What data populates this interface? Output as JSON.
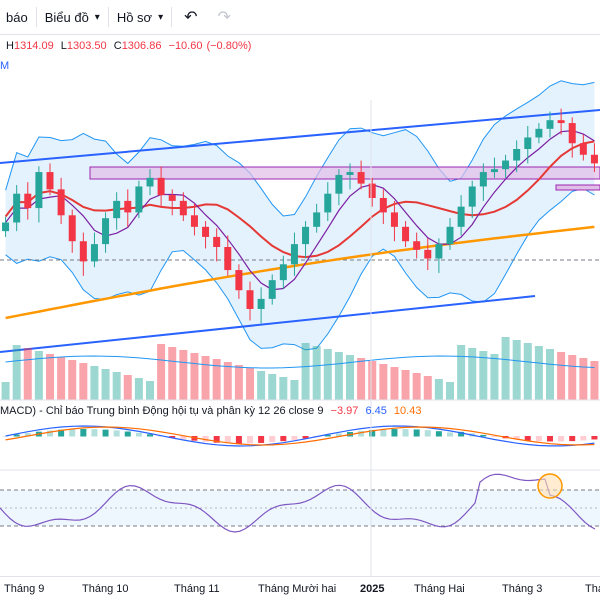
{
  "toolbar": {
    "items": [
      "báo",
      "Biểu đồ",
      "Hồ sơ"
    ],
    "undo_icon": "undo-icon",
    "redo_icon": "redo-icon"
  },
  "ohlc": {
    "h_label": "H",
    "h": "1314.09",
    "l_label": "L",
    "l": "1303.50",
    "c_label": "C",
    "c": "1306.86",
    "change": "−10.60",
    "change_pct": "(−0.80%)"
  },
  "left_label": "M",
  "macd": {
    "title": "MACD) - Chỉ báo Trung bình Động hội tụ và phân kỳ",
    "params": "12 26 close 9",
    "hist": "−3.97",
    "macd": "6.45",
    "signal": "10.43"
  },
  "xaxis": {
    "labels": [
      "Tháng 9",
      "Tháng 10",
      "Tháng 11",
      "Tháng Mười hai",
      "2025",
      "Tháng Hai",
      "Tháng 3",
      "Thá"
    ]
  },
  "colors": {
    "up": "#26a69a",
    "down": "#f23645",
    "trend": "#2962ff",
    "bb": "#2196f3",
    "ma_orange": "#ff9800",
    "ma_red": "#e53935",
    "ma_purple": "#7b1fa2"
  },
  "chart_data": {
    "type": "candlestick",
    "series": [
      {
        "name": "close",
        "values": [
          1265,
          1285,
          1275,
          1300,
          1288,
          1270,
          1252,
          1238,
          1250,
          1268,
          1280,
          1272,
          1290,
          1296,
          1284,
          1280,
          1270,
          1262,
          1255,
          1248,
          1232,
          1218,
          1205,
          1212,
          1225,
          1236,
          1250,
          1262,
          1272,
          1285,
          1298,
          1300,
          1292,
          1282,
          1272,
          1262,
          1252,
          1246,
          1240,
          1250,
          1262,
          1276,
          1290,
          1300,
          1302,
          1308,
          1316,
          1324,
          1330,
          1336,
          1334,
          1320,
          1312,
          1306
        ]
      }
    ],
    "title": "",
    "xlabel": "",
    "ylabel": ""
  }
}
